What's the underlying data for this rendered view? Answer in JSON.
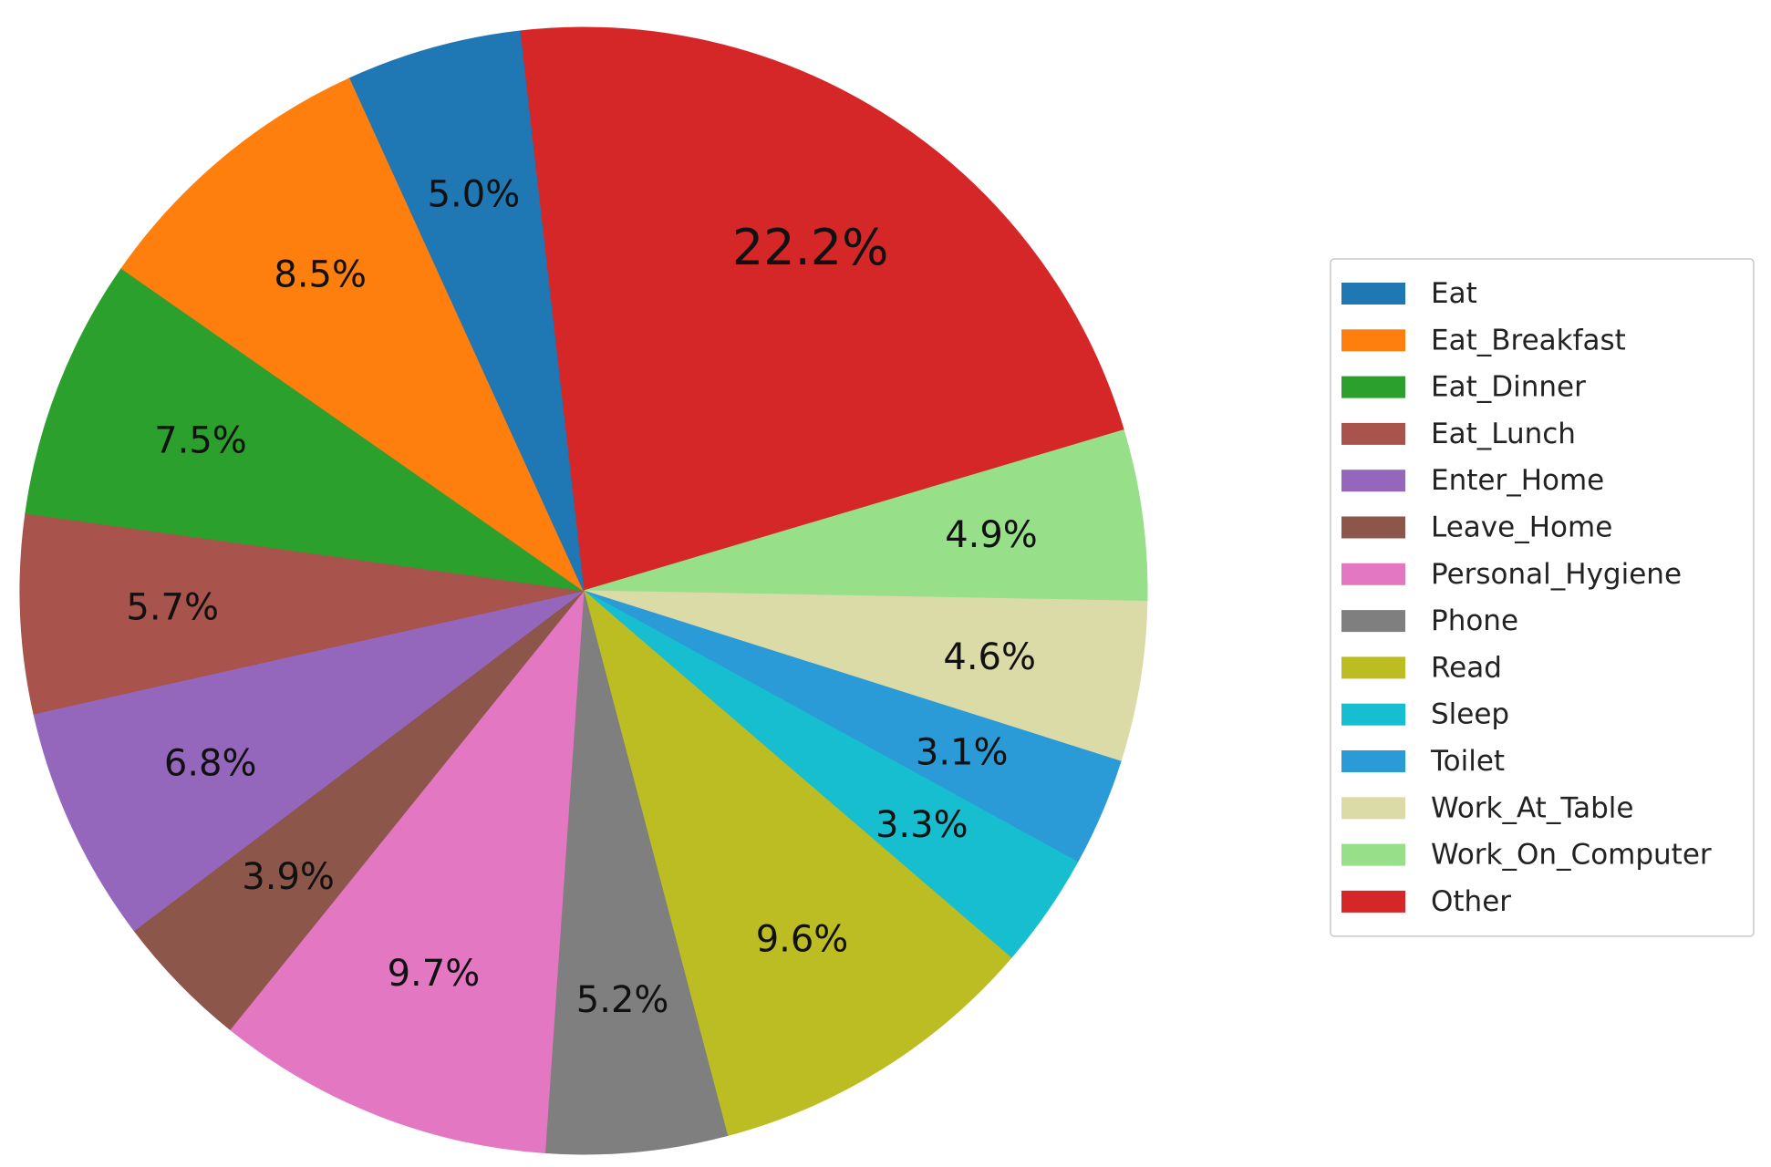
{
  "chart_data": {
    "type": "pie",
    "start_angle_deg": 96.5,
    "direction": "clockwise",
    "slices": [
      {
        "label": "Other",
        "value": 22.2,
        "display": "22.2%",
        "color": "#d62728"
      },
      {
        "label": "Work_On_Computer",
        "value": 4.9,
        "display": "4.9%",
        "color": "#98df8a"
      },
      {
        "label": "Work_At_Table",
        "value": 4.6,
        "display": "4.6%",
        "color": "#dbdba8"
      },
      {
        "label": "Toilet",
        "value": 3.1,
        "display": "3.1%",
        "color": "#2b9bd8"
      },
      {
        "label": "Sleep",
        "value": 3.3,
        "display": "3.3%",
        "color": "#17becf"
      },
      {
        "label": "Read",
        "value": 9.6,
        "display": "9.6%",
        "color": "#bcbd22"
      },
      {
        "label": "Phone",
        "value": 5.2,
        "display": "5.2%",
        "color": "#7f7f7f"
      },
      {
        "label": "Personal_Hygiene",
        "value": 9.7,
        "display": "9.7%",
        "color": "#e377c2"
      },
      {
        "label": "Leave_Home",
        "value": 3.9,
        "display": "3.9%",
        "color": "#8c564b"
      },
      {
        "label": "Enter_Home",
        "value": 6.8,
        "display": "6.8%",
        "color": "#9467bd"
      },
      {
        "label": "Eat_Lunch",
        "value": 5.7,
        "display": "5.7%",
        "color": "#a8534c"
      },
      {
        "label": "Eat_Dinner",
        "value": 7.5,
        "display": "7.5%",
        "color": "#2ca02c"
      },
      {
        "label": "Eat_Breakfast",
        "value": 8.5,
        "display": "8.5%",
        "color": "#ff7f0e"
      },
      {
        "label": "Eat",
        "value": 5.0,
        "display": "5.0%",
        "color": "#1f77b4"
      }
    ],
    "legend": {
      "placement": "right",
      "entries": [
        {
          "label": "Eat",
          "color": "#1f77b4"
        },
        {
          "label": "Eat_Breakfast",
          "color": "#ff7f0e"
        },
        {
          "label": "Eat_Dinner",
          "color": "#2ca02c"
        },
        {
          "label": "Eat_Lunch",
          "color": "#a8534c"
        },
        {
          "label": "Enter_Home",
          "color": "#9467bd"
        },
        {
          "label": "Leave_Home",
          "color": "#8c564b"
        },
        {
          "label": "Personal_Hygiene",
          "color": "#e377c2"
        },
        {
          "label": "Phone",
          "color": "#7f7f7f"
        },
        {
          "label": "Read",
          "color": "#bcbd22"
        },
        {
          "label": "Sleep",
          "color": "#17becf"
        },
        {
          "label": "Toilet",
          "color": "#2b9bd8"
        },
        {
          "label": "Work_At_Table",
          "color": "#dbdba8"
        },
        {
          "label": "Work_On_Computer",
          "color": "#98df8a"
        },
        {
          "label": "Other",
          "color": "#d62728"
        }
      ]
    }
  }
}
